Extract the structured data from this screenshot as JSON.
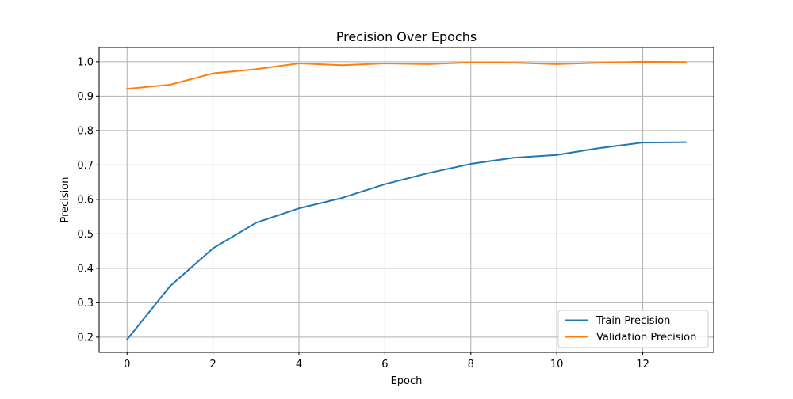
{
  "chart_data": {
    "type": "line",
    "title": "Precision Over Epochs",
    "xlabel": "Epoch",
    "ylabel": "Precision",
    "x": [
      0,
      1,
      2,
      3,
      4,
      5,
      6,
      7,
      8,
      9,
      10,
      11,
      12,
      13
    ],
    "series": [
      {
        "name": "Train Precision",
        "color": "#1f77b4",
        "values": [
          0.193,
          0.348,
          0.458,
          0.532,
          0.574,
          0.604,
          0.644,
          0.676,
          0.703,
          0.721,
          0.729,
          0.749,
          0.765,
          0.766
        ]
      },
      {
        "name": "Validation Precision",
        "color": "#ff7f0e",
        "values": [
          0.921,
          0.933,
          0.966,
          0.978,
          0.995,
          0.99,
          0.995,
          0.993,
          0.998,
          0.997,
          0.993,
          0.997,
          1.0,
          0.999
        ]
      }
    ],
    "xlim": [
      -0.65,
      13.65
    ],
    "ylim": [
      0.156,
      1.041
    ],
    "xticks": [
      0,
      2,
      4,
      6,
      8,
      10,
      12
    ],
    "yticks": [
      0.2,
      0.3,
      0.4,
      0.5,
      0.6,
      0.7,
      0.8,
      0.9,
      1.0
    ],
    "ytick_labels": [
      "0.2",
      "0.3",
      "0.4",
      "0.5",
      "0.6",
      "0.7",
      "0.8",
      "0.9",
      "1.0"
    ],
    "grid": true,
    "legend_position": "lower-right"
  }
}
